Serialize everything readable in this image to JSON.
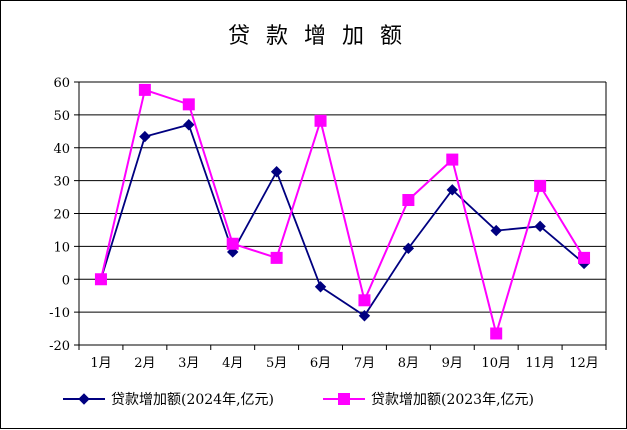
{
  "chart_data": {
    "type": "line",
    "title": "贷款增加额",
    "categories": [
      "1月",
      "2月",
      "3月",
      "4月",
      "5月",
      "6月",
      "7月",
      "8月",
      "9月",
      "10月",
      "11月",
      "12月"
    ],
    "ylim": [
      -20,
      60
    ],
    "yticks": [
      -20,
      -10,
      0,
      10,
      20,
      30,
      40,
      50,
      60
    ],
    "grid": true,
    "legend_position": "bottom",
    "series": [
      {
        "name": "贷款增加额(2024年,亿元)",
        "color": "#000080",
        "marker": "diamond",
        "values": [
          0,
          43.4,
          47,
          8.3,
          32.7,
          -2.3,
          -11.1,
          9.4,
          27.2,
          14.8,
          16.1,
          4.8
        ]
      },
      {
        "name": "贷款增加额(2023年,亿元)",
        "color": "#ff00ff",
        "marker": "square",
        "values": [
          0,
          57.6,
          53.2,
          10.8,
          6.5,
          48.2,
          -6.4,
          24.1,
          36.4,
          -16.5,
          28.4,
          6.5
        ]
      }
    ]
  }
}
